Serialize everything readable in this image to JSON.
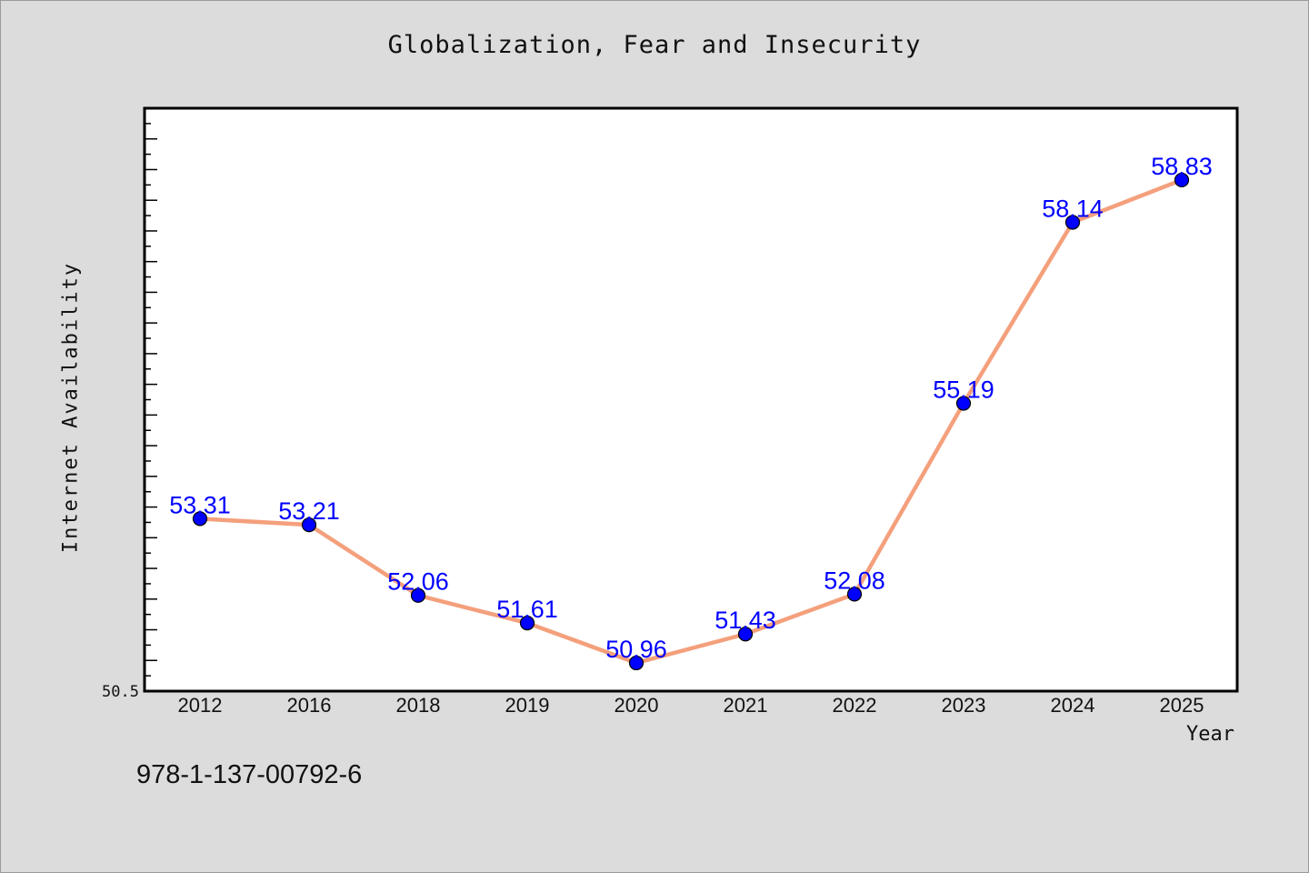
{
  "chart_data": {
    "type": "line",
    "title": "Globalization, Fear and Insecurity",
    "xlabel": "Year",
    "ylabel": "Internet Availability",
    "categories": [
      "2012",
      "2016",
      "2018",
      "2019",
      "2020",
      "2021",
      "2022",
      "2023",
      "2024",
      "2025"
    ],
    "series": [
      {
        "values": [
          53.31,
          53.21,
          52.06,
          51.61,
          50.96,
          51.43,
          52.08,
          55.19,
          58.14,
          58.83
        ],
        "data_labels": [
          "53.31",
          "53.21",
          "52.06",
          "51.61",
          "50.96",
          "51.43",
          "52.08",
          "55.19",
          "58.14",
          "58.83"
        ]
      }
    ],
    "ylim": [
      50.5,
      60.0
    ],
    "y_tick_labels": [
      "50.5"
    ],
    "grid": false,
    "colors": {
      "line": "#f4a07c",
      "marker": "#0000ff",
      "marker_edge": "#000000",
      "data_label": "#0000ff"
    }
  },
  "footer": {
    "isbn": "978-1-137-00792-6"
  }
}
